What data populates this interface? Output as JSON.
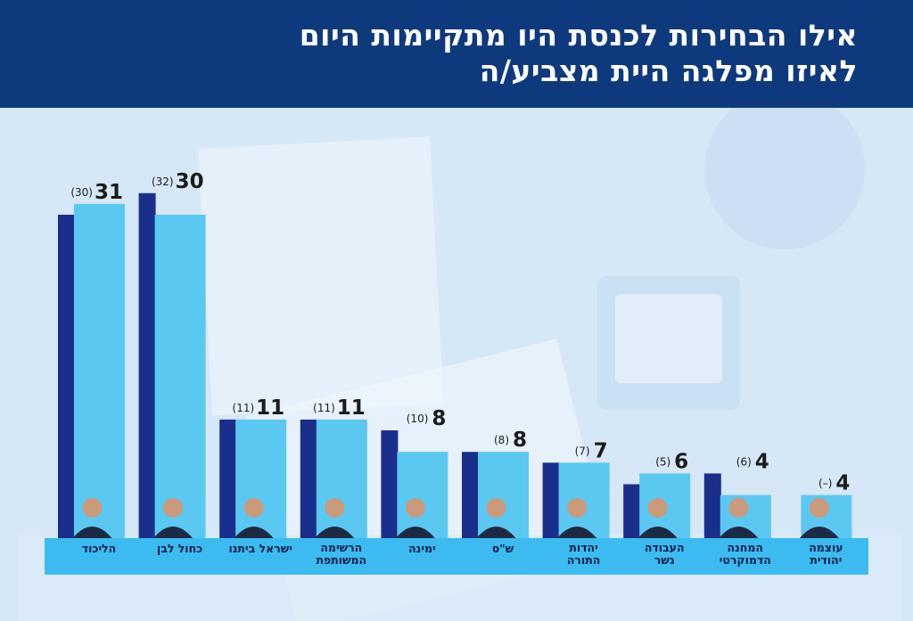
{
  "header": {
    "title_line1": "אילו הבחירות לכנסת היו מתקיימות היום",
    "title_line2": "לאיזו מפלגה היית מצביע/ה"
  },
  "colors": {
    "header_bg": "#0e3a7d",
    "previous_bar": "#1a2f8c",
    "current_bar": "#5bc8f2",
    "label_strip": "#3bbbef",
    "value_text": "#1c1c1c"
  },
  "chart_data": {
    "type": "bar",
    "title": "אילו הבחירות לכנסת היו מתקיימות היום לאיזו מפלגה היית מצביע/ה",
    "categories": [
      [
        "הליכוד"
      ],
      [
        "כחול לבן"
      ],
      [
        "ישראל ביתנו"
      ],
      [
        "הרשימה",
        "המשותפת"
      ],
      [
        "ימינה"
      ],
      [
        "ש\"ס"
      ],
      [
        "יהדות",
        "התורה"
      ],
      [
        "העבודה",
        "גשר"
      ],
      [
        "המחנה",
        "הדמוקרטי"
      ],
      [
        "עוצמה",
        "יהודית"
      ]
    ],
    "series": [
      {
        "name": "previous",
        "values": [
          30,
          32,
          11,
          11,
          10,
          8,
          7,
          5,
          6,
          null
        ]
      },
      {
        "name": "current",
        "values": [
          31,
          30,
          11,
          11,
          8,
          8,
          7,
          6,
          4,
          4
        ]
      }
    ],
    "value_labels": [
      "31",
      "30",
      "11",
      "11",
      "8",
      "8",
      "7",
      "6",
      "4",
      "4"
    ],
    "previous_labels": [
      "(30)",
      "(32)",
      "(11)",
      "(11)",
      "(10)",
      "(8)",
      "(7)",
      "(5)",
      "(6)",
      "(–)"
    ],
    "ylim": [
      0,
      32
    ],
    "xlabel": "",
    "ylabel": ""
  }
}
